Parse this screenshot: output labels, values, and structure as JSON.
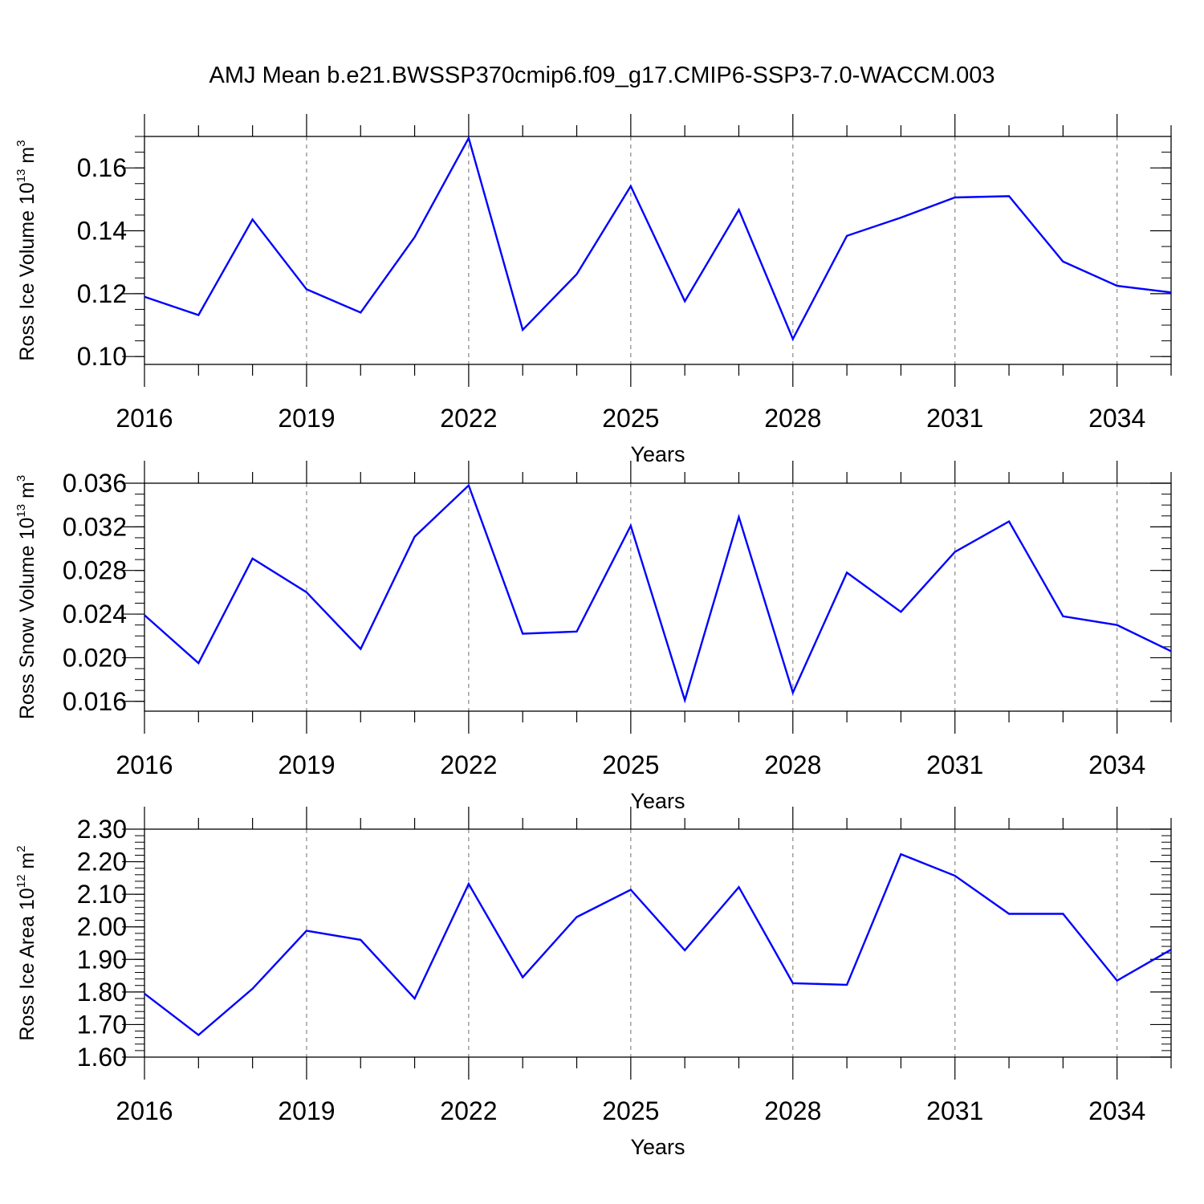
{
  "title": "AMJ Mean b.e21.BWSSP370cmip6.f09_g17.CMIP6-SSP3-7.0-WACCM.003",
  "chart_data": [
    {
      "type": "line",
      "ylabel": "Ross Ice Volume 10",
      "ylabel_exp": "13",
      "ylabel_unit": " m",
      "ylabel_unit_exp": "3",
      "xlabel": "Years",
      "xlim": [
        2016,
        2035
      ],
      "ylim": [
        0.0975,
        0.17
      ],
      "yticks": [
        "0.10",
        "0.12",
        "0.14",
        "0.16"
      ],
      "ytick_values": [
        0.1,
        0.12,
        0.14,
        0.16
      ],
      "xticks": [
        "2016",
        "2019",
        "2022",
        "2025",
        "2028",
        "2031",
        "2034"
      ],
      "xtick_values": [
        2016,
        2019,
        2022,
        2025,
        2028,
        2031,
        2034
      ],
      "grid": "vertical dashed at major x ticks",
      "line_color": "#0000ff",
      "x": [
        2016,
        2017,
        2018,
        2019,
        2020,
        2021,
        2022,
        2023,
        2024,
        2025,
        2026,
        2027,
        2028,
        2029,
        2030,
        2031,
        2032,
        2033,
        2034,
        2035
      ],
      "values": [
        0.119,
        0.1132,
        0.1436,
        0.1214,
        0.114,
        0.138,
        0.1695,
        0.1085,
        0.1262,
        0.1542,
        0.1176,
        0.1467,
        0.1056,
        0.1384,
        0.1442,
        0.1506,
        0.151,
        0.1302,
        0.1225,
        0.1204
      ]
    },
    {
      "type": "line",
      "ylabel": "Ross Snow Volume 10",
      "ylabel_exp": "13",
      "ylabel_unit": " m",
      "ylabel_unit_exp": "3",
      "xlabel": "Years",
      "xlim": [
        2016,
        2035
      ],
      "ylim": [
        0.0151,
        0.036
      ],
      "yticks": [
        "0.016",
        "0.020",
        "0.024",
        "0.028",
        "0.032",
        "0.036"
      ],
      "ytick_values": [
        0.016,
        0.02,
        0.024,
        0.028,
        0.032,
        0.036
      ],
      "xticks": [
        "2016",
        "2019",
        "2022",
        "2025",
        "2028",
        "2031",
        "2034"
      ],
      "xtick_values": [
        2016,
        2019,
        2022,
        2025,
        2028,
        2031,
        2034
      ],
      "grid": "vertical dashed at major x ticks",
      "line_color": "#0000ff",
      "x": [
        2016,
        2017,
        2018,
        2019,
        2020,
        2021,
        2022,
        2023,
        2024,
        2025,
        2026,
        2027,
        2028,
        2029,
        2030,
        2031,
        2032,
        2033,
        2034,
        2035
      ],
      "values": [
        0.0239,
        0.0195,
        0.0291,
        0.026,
        0.0208,
        0.0311,
        0.0358,
        0.0222,
        0.0224,
        0.0321,
        0.0161,
        0.0329,
        0.0168,
        0.0278,
        0.0242,
        0.0297,
        0.0325,
        0.0238,
        0.023,
        0.0206
      ]
    },
    {
      "type": "line",
      "ylabel": "Ross Ice Area 10",
      "ylabel_exp": "12",
      "ylabel_unit": " m",
      "ylabel_unit_exp": "2",
      "xlabel": "Years",
      "xlim": [
        2016,
        2035
      ],
      "ylim": [
        1.6,
        2.3
      ],
      "yticks": [
        "1.60",
        "1.70",
        "1.80",
        "1.90",
        "2.00",
        "2.10",
        "2.20",
        "2.30"
      ],
      "ytick_values": [
        1.6,
        1.7,
        1.8,
        1.9,
        2.0,
        2.1,
        2.2,
        2.3
      ],
      "xticks": [
        "2016",
        "2019",
        "2022",
        "2025",
        "2028",
        "2031",
        "2034"
      ],
      "xtick_values": [
        2016,
        2019,
        2022,
        2025,
        2028,
        2031,
        2034
      ],
      "grid": "vertical dashed at major x ticks",
      "line_color": "#0000ff",
      "x": [
        2016,
        2017,
        2018,
        2019,
        2020,
        2021,
        2022,
        2023,
        2024,
        2025,
        2026,
        2027,
        2028,
        2029,
        2030,
        2031,
        2032,
        2033,
        2034,
        2035
      ],
      "values": [
        1.795,
        1.668,
        1.81,
        1.988,
        1.96,
        1.78,
        2.132,
        1.845,
        2.03,
        2.114,
        1.928,
        2.122,
        1.827,
        1.822,
        2.223,
        2.157,
        2.04,
        2.04,
        1.835,
        1.93
      ]
    }
  ]
}
